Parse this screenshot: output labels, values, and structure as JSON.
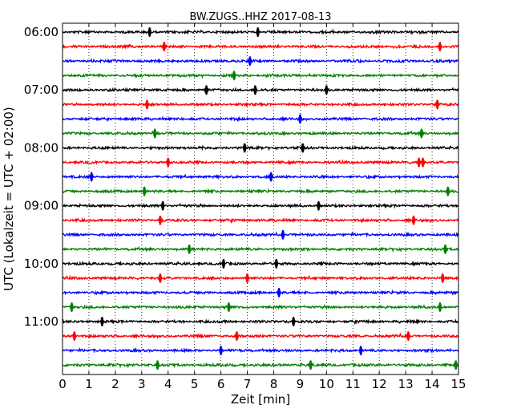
{
  "chart_data": {
    "type": "line",
    "title": "BW.ZUGS..HHZ 2017-08-13",
    "xlabel": "Zeit  [min]",
    "ylabel": "UTC (Lokalzeit = UTC + 02:00)",
    "xlim": [
      0,
      15
    ],
    "x_ticks": [
      "0",
      "1",
      "2",
      "3",
      "4",
      "5",
      "6",
      "7",
      "8",
      "9",
      "10",
      "11",
      "12",
      "13",
      "14",
      "15"
    ],
    "y_ticks": [
      "06:00",
      "07:00",
      "08:00",
      "09:00",
      "10:00",
      "11:00"
    ],
    "y_tick_row_index": [
      0,
      4,
      8,
      12,
      16,
      20
    ],
    "grid": "vertical dotted",
    "row_minutes": 15,
    "series_colors": [
      "#000000",
      "#ff0000",
      "#0000ff",
      "#008000"
    ],
    "series": [
      {
        "start": "06:00",
        "events": [
          3.3,
          7.4
        ]
      },
      {
        "start": "06:15",
        "events": [
          3.85,
          14.3
        ]
      },
      {
        "start": "06:30",
        "events": [
          7.1
        ]
      },
      {
        "start": "06:45",
        "events": [
          6.5
        ]
      },
      {
        "start": "07:00",
        "events": [
          5.45,
          7.3,
          10.0
        ]
      },
      {
        "start": "07:15",
        "events": [
          3.2,
          14.2
        ]
      },
      {
        "start": "07:30",
        "events": [
          9.0
        ]
      },
      {
        "start": "07:45",
        "events": [
          3.5,
          13.6
        ]
      },
      {
        "start": "08:00",
        "events": [
          6.9,
          9.1
        ]
      },
      {
        "start": "08:15",
        "events": [
          4.0,
          13.5,
          13.65
        ]
      },
      {
        "start": "08:30",
        "events": [
          1.1,
          7.9
        ]
      },
      {
        "start": "08:45",
        "events": [
          3.1,
          14.6
        ]
      },
      {
        "start": "09:00",
        "events": [
          3.8,
          9.7
        ]
      },
      {
        "start": "09:15",
        "events": [
          3.7,
          13.3
        ]
      },
      {
        "start": "09:30",
        "events": [
          8.35
        ]
      },
      {
        "start": "09:45",
        "events": [
          4.8,
          14.5
        ]
      },
      {
        "start": "10:00",
        "events": [
          6.1,
          8.1
        ]
      },
      {
        "start": "10:15",
        "events": [
          3.7,
          7.0,
          14.4
        ]
      },
      {
        "start": "10:30",
        "events": [
          8.2
        ]
      },
      {
        "start": "10:45",
        "events": [
          0.35,
          6.3,
          14.3
        ]
      },
      {
        "start": "11:00",
        "events": [
          1.5,
          8.75
        ]
      },
      {
        "start": "11:15",
        "events": [
          0.45,
          6.6,
          13.1
        ]
      },
      {
        "start": "11:30",
        "events": [
          6.0,
          11.3
        ]
      },
      {
        "start": "11:45",
        "events": [
          3.6,
          9.4,
          14.9
        ]
      }
    ]
  }
}
